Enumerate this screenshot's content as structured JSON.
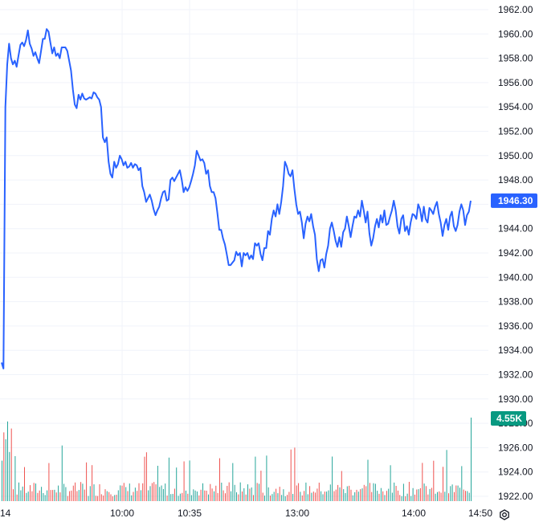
{
  "chart_data": {
    "type": "line",
    "title": "",
    "xlabel": "",
    "ylabel": "",
    "ylim": [
      1921.5,
      1963.0
    ],
    "y_ticks": [
      "1962.00",
      "1960.00",
      "1958.00",
      "1956.00",
      "1954.00",
      "1952.00",
      "1950.00",
      "1948.00",
      "1946.00",
      "1944.00",
      "1942.00",
      "1940.00",
      "1938.00",
      "1936.00",
      "1934.00",
      "1932.00",
      "1930.00",
      "1928.00",
      "1926.00",
      "1924.00",
      "1922.00"
    ],
    "x_tick_labels": [
      "14",
      "10:00",
      "10:35",
      "13:00",
      "14:00",
      "14:50"
    ],
    "grid": true,
    "series": [
      {
        "values": [
          1933.0,
          1932.5,
          1954.0,
          1957.5,
          1959.2,
          1958.0,
          1957.5,
          1957.8,
          1957.3,
          1958.2,
          1959.1,
          1959.3,
          1959.0,
          1959.5,
          1960.3,
          1959.2,
          1958.8,
          1958.2,
          1958.5,
          1958.0,
          1957.6,
          1958.6,
          1959.6,
          1959.6,
          1960.4,
          1960.2,
          1959.3,
          1958.4,
          1958.9,
          1958.2,
          1958.4,
          1958.0,
          1958.9,
          1958.9,
          1958.9,
          1958.6,
          1957.8,
          1957.0,
          1955.4,
          1954.2,
          1953.9,
          1955.0,
          1954.6,
          1955.1,
          1954.7,
          1954.6,
          1954.7,
          1954.8,
          1954.7,
          1955.2,
          1955.1,
          1954.8,
          1954.6,
          1954.0,
          1951.5,
          1951.1,
          1951.5,
          1949.5,
          1948.5,
          1948.2,
          1949.5,
          1949.0,
          1949.3,
          1950.0,
          1949.7,
          1949.2,
          1949.5,
          1949.0,
          1949.1,
          1949.4,
          1949.0,
          1949.3,
          1949.2,
          1948.8,
          1949.0,
          1947.5,
          1947.0,
          1946.2,
          1946.5,
          1946.8,
          1946.3,
          1945.6,
          1945.1,
          1945.5,
          1945.8,
          1946.5,
          1947.0,
          1947.1,
          1946.3,
          1946.4,
          1948.0,
          1948.2,
          1947.9,
          1948.2,
          1948.5,
          1948.8,
          1948.0,
          1947.0,
          1947.4,
          1947.1,
          1947.4,
          1947.9,
          1948.5,
          1949.2,
          1950.4,
          1950.0,
          1949.6,
          1949.7,
          1949.4,
          1948.5,
          1948.8,
          1947.5,
          1947.0,
          1947.0,
          1946.5,
          1945.3,
          1943.9,
          1943.9,
          1943.2,
          1942.7,
          1941.9,
          1941.0,
          1941.0,
          1941.2,
          1941.4,
          1942.1,
          1941.8,
          1942.0,
          1940.9,
          1942.0,
          1941.8,
          1942.0,
          1941.5,
          1941.8,
          1941.5,
          1942.8,
          1942.6,
          1942.8,
          1941.9,
          1941.4,
          1942.4,
          1942.4,
          1943.8,
          1943.5,
          1944.8,
          1945.5,
          1945.0,
          1946.0,
          1945.2,
          1946.2,
          1947.5,
          1949.5,
          1949.1,
          1948.5,
          1948.3,
          1948.8,
          1947.3,
          1946.0,
          1945.2,
          1945.4,
          1944.5,
          1943.2,
          1944.4,
          1945.0,
          1944.6,
          1945.2,
          1944.2,
          1943.5,
          1941.5,
          1940.5,
          1941.4,
          1941.5,
          1940.8,
          1941.9,
          1942.6,
          1944.0,
          1944.5,
          1943.8,
          1943.0,
          1942.5,
          1943.3,
          1942.5,
          1943.7,
          1944.0,
          1945.0,
          1944.2,
          1943.3,
          1944.2,
          1945.0,
          1944.9,
          1945.5,
          1945.0,
          1946.3,
          1945.5,
          1944.5,
          1945.4,
          1943.6,
          1942.6,
          1943.2,
          1944.2,
          1944.8,
          1944.1,
          1945.1,
          1944.5,
          1945.5,
          1944.3,
          1944.4,
          1945.0,
          1945.5,
          1946.3,
          1945.5,
          1944.2,
          1943.6,
          1944.8,
          1945.1,
          1943.8,
          1944.2,
          1943.5,
          1944.5,
          1945.2,
          1945.1,
          1944.8,
          1946.0,
          1945.6,
          1944.6,
          1945.8,
          1944.8,
          1944.5,
          1945.7,
          1945.5,
          1945.2,
          1945.8,
          1946.2,
          1945.2,
          1944.5,
          1943.4,
          1944.3,
          1944.8,
          1943.9,
          1945.0,
          1945.4,
          1944.2,
          1943.8,
          1944.3,
          1945.4,
          1946.0,
          1945.5,
          1944.3,
          1945.1,
          1945.4,
          1946.3
        ]
      }
    ],
    "last_price_label": "1946.30",
    "volume_label": "4.55K",
    "colors": {
      "line": "#2962ff",
      "badge_price": "#2962ff",
      "badge_volume": "#089981",
      "volume_up": "#26a69a",
      "volume_down": "#ef5350"
    }
  }
}
